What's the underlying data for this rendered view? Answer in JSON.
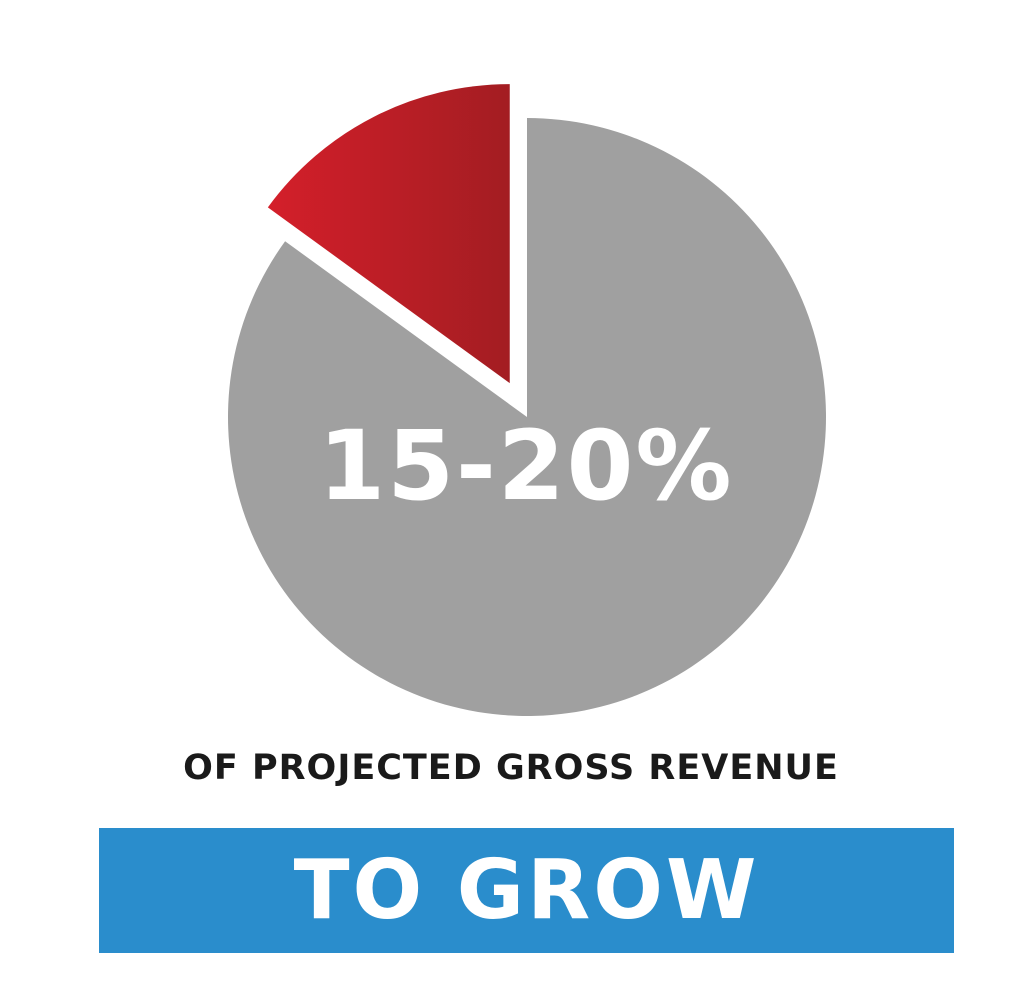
{
  "chart_data": {
    "type": "pie",
    "slices": [
      {
        "value": 15,
        "color": "#c41e26",
        "exploded": true
      },
      {
        "value": 85,
        "color": "#a0a0a0",
        "exploded": false
      }
    ],
    "center_label": "15-20%",
    "caption": "OF PROJECTED GROSS REVENUE",
    "banner": "TO GROW"
  },
  "colors": {
    "highlight": "#c41e26",
    "remainder": "#a0a0a0",
    "banner_bg": "#2a8dcc"
  }
}
